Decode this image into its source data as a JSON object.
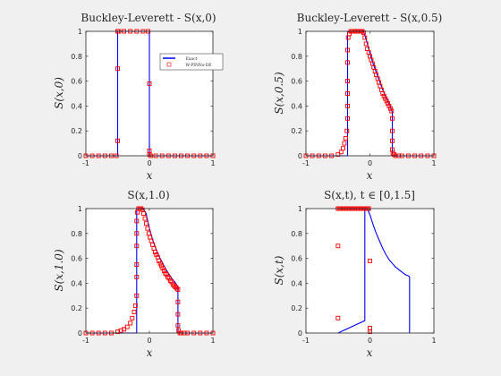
{
  "chart_data": [
    {
      "type": "line",
      "title": "Buckley-Leverett - S(x,0)",
      "xlabel": "x",
      "ylabel": "S(x,0)",
      "xlim": [
        -1,
        1
      ],
      "ylim": [
        0,
        1
      ],
      "xticks": [
        -1,
        0,
        1
      ],
      "yticks": [
        0,
        0.2,
        0.4,
        0.6,
        0.8,
        1
      ],
      "grid": false,
      "legend": {
        "position": "top-right",
        "entries": [
          "Exact",
          "W-PINNs-DE"
        ]
      },
      "series": [
        {
          "name": "Exact",
          "style": "line",
          "color": "#0000ff",
          "x": [
            -1,
            -0.5,
            -0.5,
            0,
            0,
            1
          ],
          "y": [
            0,
            0,
            1,
            1,
            0,
            0
          ]
        },
        {
          "name": "W-PINNs-DE",
          "style": "markers",
          "color": "#ff0000",
          "x": [
            -1,
            -0.9,
            -0.8,
            -0.7,
            -0.6,
            -0.52,
            -0.5,
            -0.5,
            -0.5,
            -0.48,
            -0.4,
            -0.3,
            -0.2,
            -0.1,
            -0.02,
            0,
            0,
            0,
            0.02,
            0.1,
            0.2,
            0.3,
            0.4,
            0.5,
            0.6,
            0.7,
            0.8,
            0.9,
            1
          ],
          "y": [
            0,
            0,
            0,
            0,
            0,
            0,
            0.12,
            0.7,
            1,
            1,
            1,
            1,
            1,
            1,
            1,
            0.58,
            0.04,
            0.01,
            0,
            0,
            0,
            0,
            0,
            0,
            0,
            0,
            0,
            0,
            0
          ]
        }
      ]
    },
    {
      "type": "line",
      "title": "Buckley-Leverett - S(x,0.5)",
      "xlabel": "x",
      "ylabel": "S(x,0.5)",
      "xlim": [
        -1,
        1
      ],
      "ylim": [
        0,
        1
      ],
      "xticks": [
        -1,
        0,
        1
      ],
      "yticks": [
        0,
        0.2,
        0.4,
        0.6,
        0.8,
        1
      ],
      "grid": false,
      "series": [
        {
          "name": "Exact",
          "style": "line",
          "color": "#0000ff",
          "x": [
            -1,
            -0.35,
            -0.35,
            -0.3,
            -0.25,
            -0.2,
            -0.15,
            -0.1,
            -0.05,
            0,
            0.05,
            0.1,
            0.15,
            0.2,
            0.25,
            0.3,
            0.33,
            0.35,
            0.35,
            1
          ],
          "y": [
            0,
            0,
            1,
            1,
            1,
            1,
            1,
            1,
            0.92,
            0.82,
            0.74,
            0.67,
            0.6,
            0.53,
            0.47,
            0.42,
            0.38,
            0.35,
            0,
            0
          ]
        },
        {
          "name": "W-PINNs-DE",
          "style": "markers",
          "color": "#ff0000",
          "x": [
            -1,
            -0.9,
            -0.8,
            -0.7,
            -0.6,
            -0.5,
            -0.45,
            -0.42,
            -0.4,
            -0.38,
            -0.36,
            -0.35,
            -0.35,
            -0.35,
            -0.35,
            -0.35,
            -0.35,
            -0.34,
            -0.32,
            -0.3,
            -0.28,
            -0.26,
            -0.24,
            -0.22,
            -0.2,
            -0.18,
            -0.16,
            -0.14,
            -0.12,
            -0.1,
            -0.08,
            -0.06,
            -0.04,
            -0.02,
            0,
            0.02,
            0.04,
            0.06,
            0.08,
            0.1,
            0.12,
            0.14,
            0.16,
            0.18,
            0.2,
            0.22,
            0.24,
            0.26,
            0.28,
            0.3,
            0.32,
            0.34,
            0.35,
            0.35,
            0.35,
            0.35,
            0.36,
            0.38,
            0.4,
            0.45,
            0.5,
            0.6,
            0.7,
            0.8,
            0.9,
            1
          ],
          "y": [
            0,
            0,
            0,
            0,
            0,
            0.01,
            0.03,
            0.06,
            0.1,
            0.14,
            0.2,
            0.3,
            0.4,
            0.5,
            0.6,
            0.75,
            0.85,
            0.95,
            0.98,
            1,
            1,
            1,
            1,
            1,
            1,
            1,
            1,
            1,
            1,
            0.99,
            0.95,
            0.9,
            0.86,
            0.83,
            0.8,
            0.77,
            0.74,
            0.71,
            0.68,
            0.65,
            0.62,
            0.59,
            0.56,
            0.53,
            0.5,
            0.48,
            0.46,
            0.44,
            0.42,
            0.4,
            0.38,
            0.36,
            0.3,
            0.2,
            0.12,
            0.05,
            0.02,
            0.01,
            0,
            0,
            0,
            0,
            0,
            0,
            0,
            0
          ]
        }
      ]
    },
    {
      "type": "line",
      "title": "S(x,1.0)",
      "xlabel": "x",
      "ylabel": "S(x,1.0)",
      "xlim": [
        -1,
        1
      ],
      "ylim": [
        0,
        1
      ],
      "xticks": [
        -1,
        0,
        1
      ],
      "yticks": [
        0,
        0.2,
        0.4,
        0.6,
        0.8,
        1
      ],
      "grid": false,
      "series": [
        {
          "name": "Exact",
          "style": "line",
          "color": "#0000ff",
          "x": [
            -1,
            -0.2,
            -0.2,
            -0.15,
            -0.1,
            -0.05,
            0,
            0.05,
            0.1,
            0.15,
            0.2,
            0.25,
            0.3,
            0.35,
            0.4,
            0.44,
            0.45,
            0.45,
            1
          ],
          "y": [
            0,
            0,
            1,
            1,
            1,
            0.96,
            0.84,
            0.75,
            0.68,
            0.62,
            0.57,
            0.52,
            0.48,
            0.44,
            0.41,
            0.38,
            0.36,
            0,
            0
          ]
        },
        {
          "name": "W-PINNs-DE",
          "style": "markers",
          "color": "#ff0000",
          "x": [
            -1,
            -0.9,
            -0.8,
            -0.7,
            -0.6,
            -0.5,
            -0.45,
            -0.4,
            -0.35,
            -0.3,
            -0.27,
            -0.24,
            -0.22,
            -0.2,
            -0.2,
            -0.2,
            -0.2,
            -0.2,
            -0.2,
            -0.19,
            -0.17,
            -0.15,
            -0.13,
            -0.11,
            -0.09,
            -0.07,
            -0.05,
            -0.03,
            -0.01,
            0.01,
            0.03,
            0.05,
            0.07,
            0.09,
            0.11,
            0.13,
            0.15,
            0.17,
            0.19,
            0.21,
            0.23,
            0.25,
            0.27,
            0.29,
            0.31,
            0.33,
            0.35,
            0.37,
            0.39,
            0.41,
            0.43,
            0.45,
            0.45,
            0.45,
            0.45,
            0.46,
            0.48,
            0.5,
            0.55,
            0.6,
            0.7,
            0.8,
            0.9,
            1
          ],
          "y": [
            0,
            0,
            0,
            0,
            0,
            0.01,
            0.02,
            0.03,
            0.05,
            0.08,
            0.12,
            0.17,
            0.22,
            0.3,
            0.45,
            0.55,
            0.7,
            0.8,
            0.9,
            0.97,
            1,
            1,
            1,
            0.99,
            0.96,
            0.92,
            0.88,
            0.84,
            0.8,
            0.77,
            0.74,
            0.71,
            0.68,
            0.65,
            0.63,
            0.61,
            0.58,
            0.56,
            0.54,
            0.52,
            0.5,
            0.48,
            0.47,
            0.45,
            0.44,
            0.42,
            0.41,
            0.39,
            0.38,
            0.37,
            0.36,
            0.35,
            0.25,
            0.15,
            0.06,
            0.02,
            0,
            0,
            0,
            0,
            0,
            0,
            0,
            0
          ]
        }
      ]
    },
    {
      "type": "line",
      "title": "S(x,t), t ∈ [0,1.5]",
      "xlabel": "x",
      "ylabel": "S(x,t)",
      "xlim": [
        -1,
        1
      ],
      "ylim": [
        0,
        1
      ],
      "xticks": [
        -1,
        0,
        1
      ],
      "yticks": [
        0,
        0.2,
        0.4,
        0.6,
        0.8,
        1
      ],
      "grid": false,
      "series": [
        {
          "name": "Exact",
          "style": "line",
          "color": "#0000ff",
          "x": [
            -0.5,
            -0.08,
            -0.08,
            -0.08,
            -0.04,
            0,
            0.05,
            0.1,
            0.15,
            0.2,
            0.25,
            0.3,
            0.35,
            0.4,
            0.45,
            0.5,
            0.55,
            0.6,
            0.62,
            0.62
          ],
          "y": [
            0,
            0.1,
            0.1,
            1,
            1,
            0.95,
            0.87,
            0.8,
            0.74,
            0.68,
            0.63,
            0.59,
            0.56,
            0.53,
            0.51,
            0.49,
            0.47,
            0.46,
            0.45,
            0
          ]
        },
        {
          "name": "W-PINNs-DE",
          "style": "markers",
          "color": "#ff0000",
          "x": [
            -0.5,
            -0.5,
            -0.5,
            -0.48,
            -0.46,
            -0.44,
            -0.42,
            -0.4,
            -0.38,
            -0.36,
            -0.34,
            -0.32,
            -0.3,
            -0.28,
            -0.26,
            -0.24,
            -0.22,
            -0.2,
            -0.18,
            -0.16,
            -0.14,
            -0.12,
            -0.1,
            -0.08,
            -0.06,
            -0.04,
            -0.02,
            0,
            0,
            0
          ],
          "y": [
            0.12,
            0.7,
            1,
            1,
            1,
            1,
            1,
            1,
            1,
            1,
            1,
            1,
            1,
            1,
            1,
            1,
            1,
            1,
            1,
            1,
            1,
            1,
            1,
            1,
            1,
            1,
            1,
            0.58,
            0.04,
            0.01
          ]
        }
      ]
    }
  ]
}
